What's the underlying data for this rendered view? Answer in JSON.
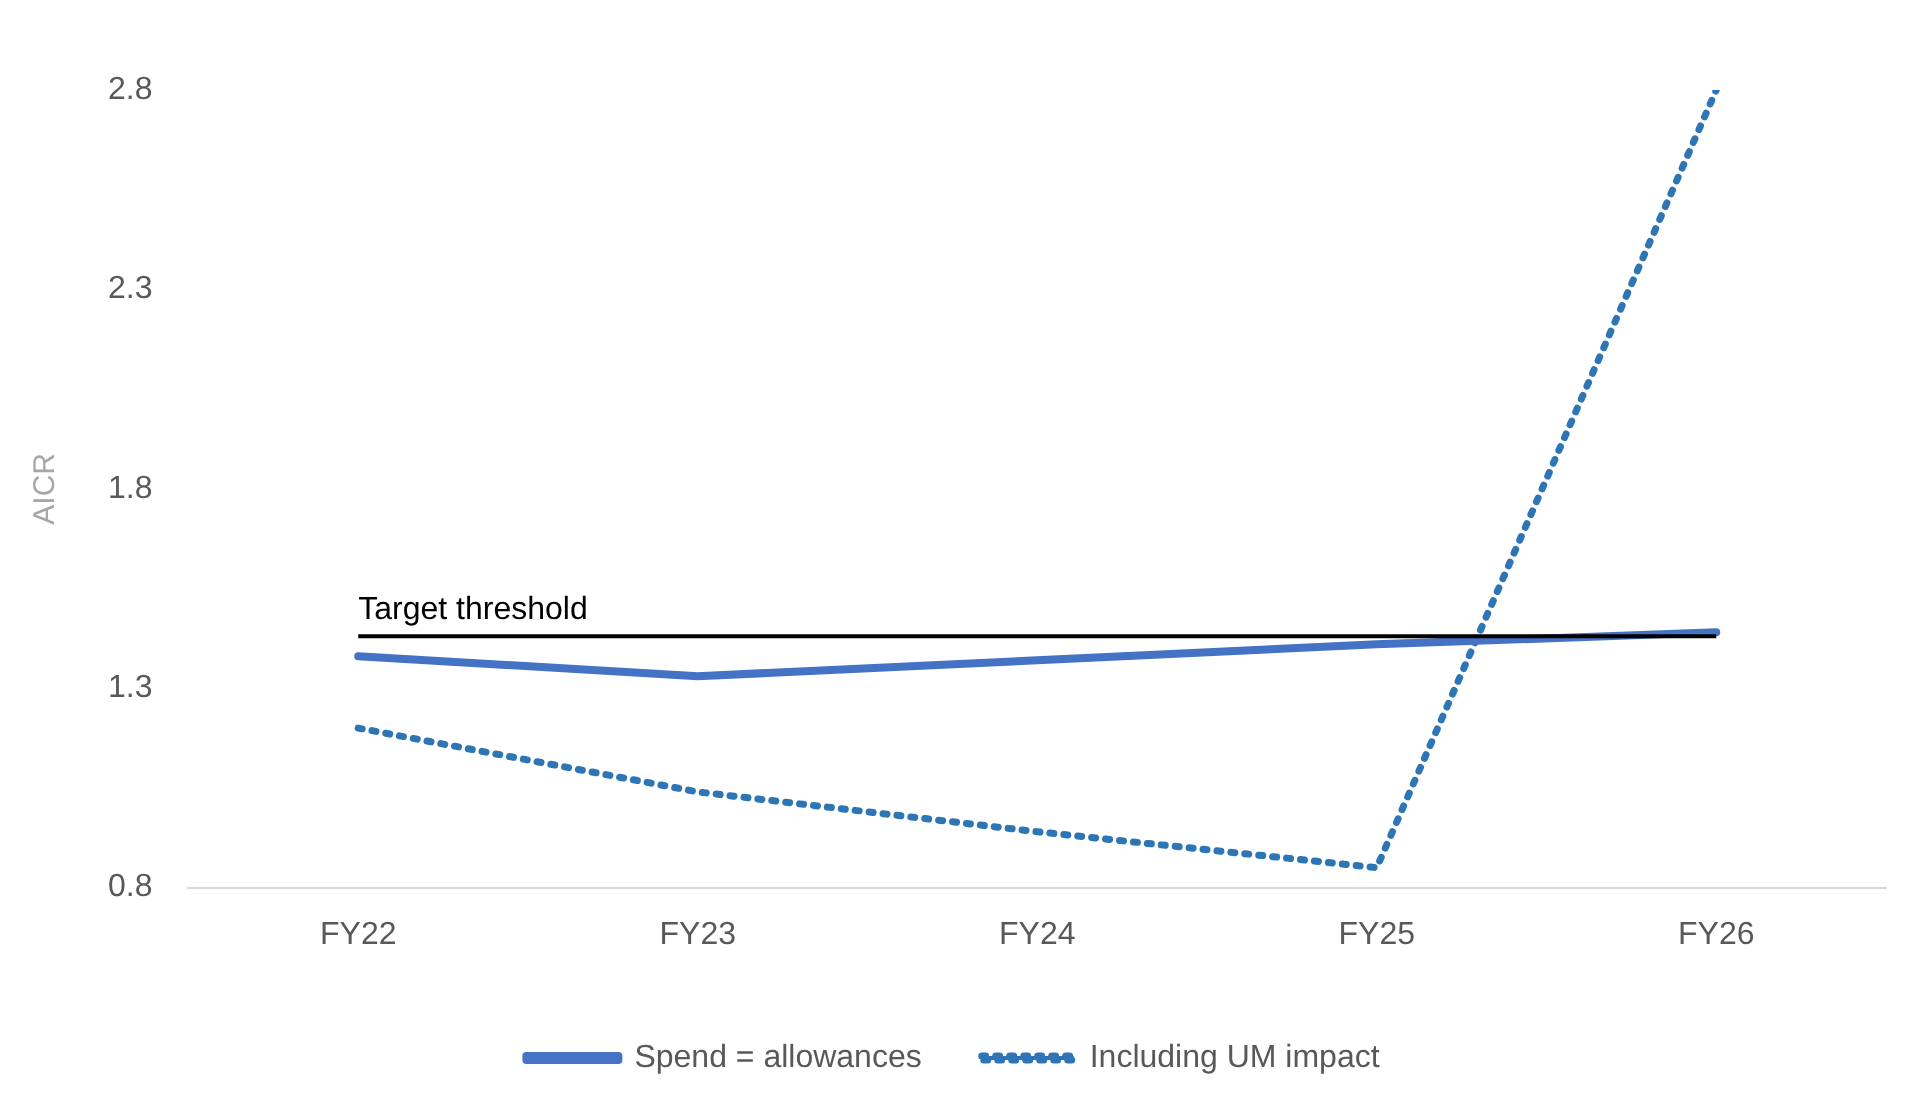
{
  "chart_data": {
    "type": "line",
    "ylabel": "AICR",
    "categories": [
      "FY22",
      "FY23",
      "FY24",
      "FY25",
      "FY26"
    ],
    "series": [
      {
        "name": "Spend = allowances",
        "color": "#4472c4",
        "values": [
          1.38,
          1.33,
          1.37,
          1.41,
          1.44
        ],
        "line_style": "solid"
      },
      {
        "name": "Including UM impact",
        "color": "#2e75b6",
        "values": [
          1.2,
          1.04,
          0.94,
          0.85,
          2.8
        ],
        "line_style": "dotted"
      }
    ],
    "ref_lines": [
      {
        "axis": "y",
        "value": 1.43,
        "label": "Target threshold",
        "color": "#000000"
      }
    ],
    "ylim": [
      0.8,
      2.8
    ],
    "yticks": [
      0.8,
      1.3,
      1.8,
      2.3,
      2.8
    ],
    "grid": false,
    "legend": "bottom",
    "marker": "none"
  }
}
